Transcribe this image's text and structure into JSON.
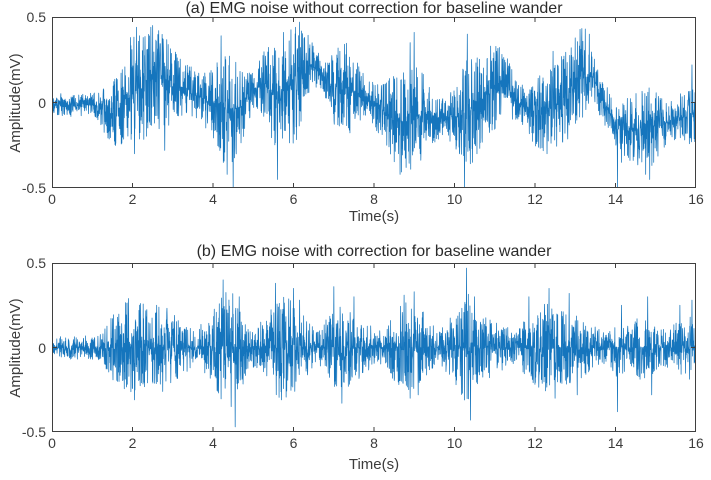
{
  "figure": {
    "background": "#ffffff",
    "line_color": "#1575bd",
    "axis_color": "#3f3f3f",
    "text_color": "#3c3c3c"
  },
  "chart_data": [
    {
      "id": "a",
      "type": "line",
      "title": "(a) EMG noise without correction for baseline wander",
      "xlabel": "Time(s)",
      "ylabel": "Amplitude(mV)",
      "xlim": [
        0,
        16
      ],
      "ylim": [
        -0.5,
        0.5
      ],
      "xticks": [
        0,
        2,
        4,
        6,
        8,
        10,
        12,
        14,
        16
      ],
      "xticklabels": [
        "0",
        "2",
        "4",
        "6",
        "8",
        "10",
        "12",
        "14",
        "16"
      ],
      "yticks": [
        0.5,
        0,
        -0.5
      ],
      "yticklabels": [
        "0.5",
        "0",
        "-0.5"
      ],
      "grid": false,
      "legend": null,
      "seed": 42,
      "samples": 3200,
      "description": "EMG noise bursts superimposed on slow baseline wander; spikes clipped at -0.5 near t=4.5, 10.25, 14.05",
      "baseline": [
        [
          0,
          -0.01
        ],
        [
          0.6,
          -0.02
        ],
        [
          1.0,
          -0.01
        ],
        [
          1.5,
          -0.07
        ],
        [
          1.9,
          0.02
        ],
        [
          2.3,
          0.12
        ],
        [
          2.7,
          0.14
        ],
        [
          3.1,
          0.1
        ],
        [
          3.5,
          0.06
        ],
        [
          3.9,
          0.0
        ],
        [
          4.3,
          -0.05
        ],
        [
          4.7,
          -0.03
        ],
        [
          5.0,
          0.08
        ],
        [
          5.3,
          0.1
        ],
        [
          5.6,
          0.02
        ],
        [
          6.0,
          0.1
        ],
        [
          6.3,
          0.22
        ],
        [
          6.6,
          0.2
        ],
        [
          7.0,
          0.08
        ],
        [
          7.3,
          0.1
        ],
        [
          7.7,
          0.04
        ],
        [
          8.1,
          -0.03
        ],
        [
          8.5,
          -0.1
        ],
        [
          8.9,
          -0.12
        ],
        [
          9.3,
          -0.06
        ],
        [
          9.7,
          -0.1
        ],
        [
          10.1,
          -0.08
        ],
        [
          10.5,
          -0.04
        ],
        [
          10.9,
          0.08
        ],
        [
          11.2,
          0.12
        ],
        [
          11.6,
          0.0
        ],
        [
          12.0,
          -0.08
        ],
        [
          12.4,
          -0.03
        ],
        [
          12.8,
          0.04
        ],
        [
          13.2,
          0.18
        ],
        [
          13.45,
          0.14
        ],
        [
          13.7,
          0.0
        ],
        [
          14.0,
          -0.12
        ],
        [
          14.4,
          -0.16
        ],
        [
          14.8,
          -0.14
        ],
        [
          15.2,
          -0.13
        ],
        [
          15.6,
          -0.08
        ],
        [
          16,
          -0.1
        ]
      ],
      "envelope": [
        [
          0,
          0.03
        ],
        [
          1.0,
          0.03
        ],
        [
          1.4,
          0.07
        ],
        [
          1.8,
          0.12
        ],
        [
          2.1,
          0.16
        ],
        [
          2.5,
          0.15
        ],
        [
          2.9,
          0.12
        ],
        [
          3.3,
          0.07
        ],
        [
          3.7,
          0.06
        ],
        [
          4.1,
          0.12
        ],
        [
          4.4,
          0.16
        ],
        [
          4.7,
          0.1
        ],
        [
          5.0,
          0.05
        ],
        [
          5.4,
          0.12
        ],
        [
          5.8,
          0.15
        ],
        [
          6.1,
          0.16
        ],
        [
          6.4,
          0.07
        ],
        [
          6.7,
          0.04
        ],
        [
          7.0,
          0.1
        ],
        [
          7.4,
          0.12
        ],
        [
          7.8,
          0.05
        ],
        [
          8.2,
          0.08
        ],
        [
          8.6,
          0.14
        ],
        [
          9.0,
          0.15
        ],
        [
          9.4,
          0.08
        ],
        [
          9.8,
          0.05
        ],
        [
          10.1,
          0.1
        ],
        [
          10.35,
          0.15
        ],
        [
          10.7,
          0.12
        ],
        [
          11.0,
          0.12
        ],
        [
          11.4,
          0.07
        ],
        [
          11.8,
          0.05
        ],
        [
          12.1,
          0.1
        ],
        [
          12.5,
          0.12
        ],
        [
          12.9,
          0.12
        ],
        [
          13.2,
          0.13
        ],
        [
          13.5,
          0.06
        ],
        [
          13.9,
          0.06
        ],
        [
          14.2,
          0.08
        ],
        [
          14.6,
          0.1
        ],
        [
          14.9,
          0.11
        ],
        [
          15.3,
          0.05
        ],
        [
          15.6,
          0.06
        ],
        [
          15.9,
          0.08
        ],
        [
          16,
          0.07
        ]
      ],
      "spikes": [
        [
          1.95,
          0.38
        ],
        [
          2.05,
          -0.3
        ],
        [
          2.1,
          0.44
        ],
        [
          2.5,
          0.45
        ],
        [
          2.65,
          0.42
        ],
        [
          2.8,
          -0.28
        ],
        [
          4.2,
          0.39
        ],
        [
          4.35,
          -0.42
        ],
        [
          4.5,
          -0.62
        ],
        [
          5.6,
          -0.45
        ],
        [
          5.75,
          0.41
        ],
        [
          6.05,
          0.44
        ],
        [
          6.15,
          0.47
        ],
        [
          7.15,
          0.3
        ],
        [
          7.3,
          0.28
        ],
        [
          8.65,
          -0.42
        ],
        [
          8.8,
          -0.38
        ],
        [
          8.9,
          0.35
        ],
        [
          9.0,
          0.41
        ],
        [
          9.15,
          -0.3
        ],
        [
          10.25,
          -0.62
        ],
        [
          10.32,
          0.4
        ],
        [
          10.45,
          -0.35
        ],
        [
          10.9,
          0.33
        ],
        [
          11.05,
          0.3
        ],
        [
          12.3,
          -0.3
        ],
        [
          12.45,
          0.3
        ],
        [
          12.9,
          0.32
        ],
        [
          13.25,
          0.43
        ],
        [
          13.35,
          0.4
        ],
        [
          14.05,
          -0.62
        ],
        [
          14.15,
          -0.35
        ],
        [
          14.75,
          -0.42
        ],
        [
          14.85,
          -0.45
        ],
        [
          14.95,
          -0.35
        ],
        [
          15.9,
          0.22
        ]
      ]
    },
    {
      "id": "b",
      "type": "line",
      "title": "(b) EMG noise with correction for baseline wander",
      "xlabel": "Time(s)",
      "ylabel": "Amplitude(mV)",
      "xlim": [
        0,
        16
      ],
      "ylim": [
        -0.5,
        0.5
      ],
      "xticks": [
        0,
        2,
        4,
        6,
        8,
        10,
        12,
        14,
        16
      ],
      "xticklabels": [
        "0",
        "2",
        "4",
        "6",
        "8",
        "10",
        "12",
        "14",
        "16"
      ],
      "yticks": [
        0.5,
        0,
        -0.5
      ],
      "yticklabels": [
        "0.5",
        "0",
        "-0.5"
      ],
      "grid": false,
      "legend": null,
      "seed": 1337,
      "samples": 3200,
      "description": "Same EMG noise bursts after baseline-wander correction; zero-mean, extremes +0.47 near t=10.3 and -0.47 near t=4.55",
      "baseline": [
        [
          0,
          0
        ],
        [
          16,
          0
        ]
      ],
      "envelope": [
        [
          0,
          0.03
        ],
        [
          1.2,
          0.035
        ],
        [
          1.5,
          0.09
        ],
        [
          1.9,
          0.13
        ],
        [
          2.3,
          0.12
        ],
        [
          2.8,
          0.11
        ],
        [
          3.2,
          0.08
        ],
        [
          3.6,
          0.05
        ],
        [
          4.0,
          0.1
        ],
        [
          4.3,
          0.16
        ],
        [
          4.6,
          0.15
        ],
        [
          4.9,
          0.05
        ],
        [
          5.3,
          0.08
        ],
        [
          5.6,
          0.14
        ],
        [
          6.0,
          0.13
        ],
        [
          6.3,
          0.08
        ],
        [
          6.6,
          0.04
        ],
        [
          6.9,
          0.1
        ],
        [
          7.3,
          0.12
        ],
        [
          7.7,
          0.08
        ],
        [
          8.1,
          0.04
        ],
        [
          8.5,
          0.09
        ],
        [
          8.8,
          0.13
        ],
        [
          9.2,
          0.1
        ],
        [
          9.6,
          0.04
        ],
        [
          10.0,
          0.1
        ],
        [
          10.3,
          0.15
        ],
        [
          10.7,
          0.1
        ],
        [
          11.1,
          0.08
        ],
        [
          11.5,
          0.04
        ],
        [
          11.8,
          0.08
        ],
        [
          12.2,
          0.12
        ],
        [
          12.6,
          0.11
        ],
        [
          13.0,
          0.1
        ],
        [
          13.4,
          0.06
        ],
        [
          13.8,
          0.04
        ],
        [
          14.0,
          0.08
        ],
        [
          14.4,
          0.06
        ],
        [
          14.7,
          0.1
        ],
        [
          15.1,
          0.05
        ],
        [
          15.4,
          0.06
        ],
        [
          15.8,
          0.09
        ],
        [
          16,
          0.08
        ]
      ],
      "spikes": [
        [
          1.9,
          0.29
        ],
        [
          2.05,
          -0.31
        ],
        [
          2.2,
          0.26
        ],
        [
          2.6,
          0.25
        ],
        [
          2.75,
          -0.26
        ],
        [
          4.25,
          0.4
        ],
        [
          4.45,
          -0.35
        ],
        [
          4.55,
          -0.47
        ],
        [
          4.65,
          0.3
        ],
        [
          5.55,
          0.38
        ],
        [
          5.7,
          -0.31
        ],
        [
          6.0,
          0.35
        ],
        [
          6.15,
          0.28
        ],
        [
          7.0,
          0.36
        ],
        [
          7.2,
          -0.33
        ],
        [
          7.5,
          0.3
        ],
        [
          8.75,
          0.31
        ],
        [
          8.9,
          -0.3
        ],
        [
          9.0,
          0.33
        ],
        [
          9.1,
          -0.28
        ],
        [
          10.3,
          0.47
        ],
        [
          10.4,
          -0.43
        ],
        [
          10.5,
          0.3
        ],
        [
          11.85,
          0.3
        ],
        [
          12.35,
          0.35
        ],
        [
          12.5,
          -0.3
        ],
        [
          12.85,
          0.32
        ],
        [
          13.05,
          -0.28
        ],
        [
          14.05,
          -0.38
        ],
        [
          14.15,
          0.25
        ],
        [
          14.8,
          0.3
        ],
        [
          14.9,
          -0.28
        ],
        [
          15.6,
          0.25
        ],
        [
          15.9,
          0.28
        ]
      ]
    }
  ]
}
